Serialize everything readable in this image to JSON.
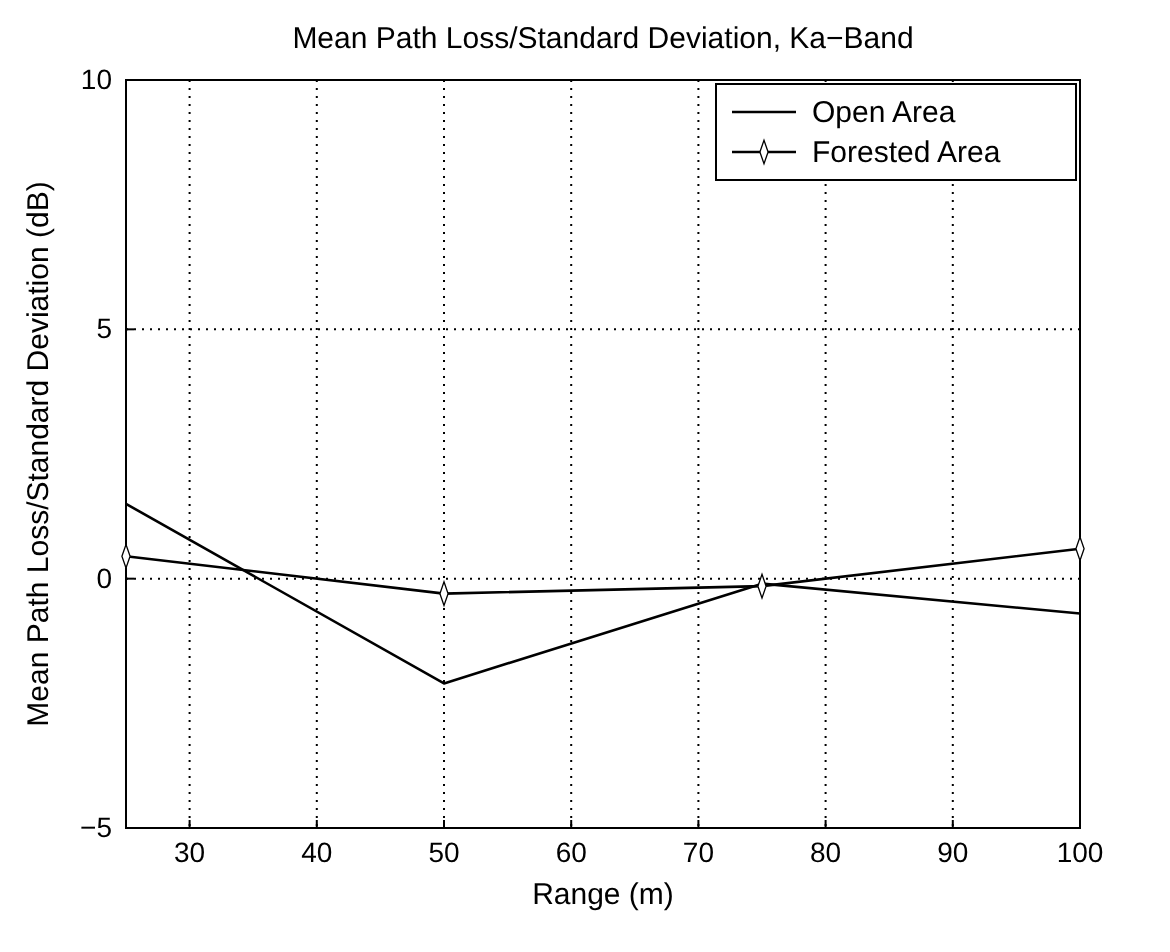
{
  "chart_data": {
    "type": "line",
    "title": "Mean Path Loss/Standard Deviation, Ka−Band",
    "xlabel": "Range (m)",
    "ylabel": "Mean Path Loss/Standard Deviation (dB)",
    "x": [
      25,
      50,
      75,
      100
    ],
    "series": [
      {
        "name": "Open Area",
        "color": "#000000",
        "values": [
          1.5,
          -2.1,
          -0.1,
          -0.7
        ],
        "marker": "none"
      },
      {
        "name": "Forested Area",
        "color": "#000000",
        "values": [
          0.45,
          -0.3,
          -0.15,
          0.6
        ],
        "marker": "diamond"
      }
    ],
    "xlim": [
      25,
      100
    ],
    "xticks": [
      30,
      40,
      50,
      60,
      70,
      80,
      90,
      100
    ],
    "ylim": [
      -5,
      10
    ],
    "yticks": [
      -5,
      0,
      5,
      10
    ],
    "grid": true,
    "legend": "top right",
    "line_style": "solid"
  }
}
